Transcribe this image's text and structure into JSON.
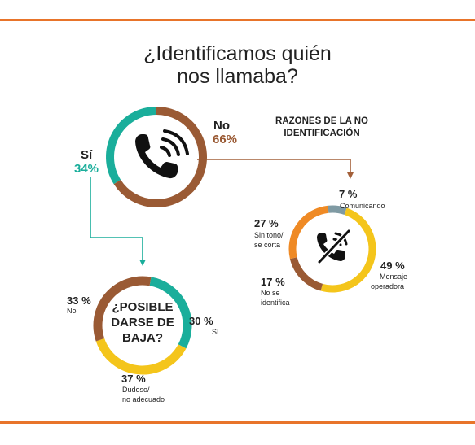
{
  "title": {
    "line1": "¿Identificamos quién",
    "line2": "nos llamaba?"
  },
  "colors": {
    "rule": "#e8742a",
    "teal": "#1aae9b",
    "brown": "#9a5a34",
    "yellow": "#f4c51b",
    "orange": "#ef8a25",
    "grey": "#7f9aa3",
    "orange_bright": "#ee7a1e",
    "arrow_brown": "#a4603a",
    "arrow_teal": "#1aae9b"
  },
  "chart_data": [
    {
      "type": "pie",
      "name": "main",
      "slices": [
        {
          "label": "Sí",
          "value": 34,
          "display": "34%",
          "color": "#1aae9b"
        },
        {
          "label": "No",
          "value": 66,
          "display": "66%",
          "color": "#9a5a34"
        }
      ]
    },
    {
      "type": "pie",
      "name": "reasons",
      "title_line1": "RAZONES DE LA NO",
      "title_line2": "IDENTIFICACIÓN",
      "slices": [
        {
          "label_lines": [
            "Comunicando"
          ],
          "value": 7,
          "display": "7 %",
          "color": "#7f9aa3"
        },
        {
          "label_lines": [
            "Mensaje",
            "operadora"
          ],
          "value": 49,
          "display": "49 %",
          "color": "#f4c51b"
        },
        {
          "label_lines": [
            "No se",
            "identifica"
          ],
          "value": 17,
          "display": "17 %",
          "color": "#9a5a34"
        },
        {
          "label_lines": [
            "Sin tono/",
            "se corta"
          ],
          "value": 27,
          "display": "27 %",
          "color": "#ef8a25"
        }
      ]
    },
    {
      "type": "pie",
      "name": "baja",
      "center_lines": [
        "¿POSIBLE",
        "DARSE DE",
        "BAJA?"
      ],
      "slices": [
        {
          "label_lines": [
            "Sí"
          ],
          "value": 30,
          "display": "30 %",
          "color": "#1aae9b"
        },
        {
          "label_lines": [
            "Dudoso/",
            "no adecuado"
          ],
          "value": 37,
          "display": "37 %",
          "color": "#f4c51b"
        },
        {
          "label_lines": [
            "No"
          ],
          "value": 33,
          "display": "33 %",
          "color": "#9a5a34"
        }
      ]
    }
  ]
}
